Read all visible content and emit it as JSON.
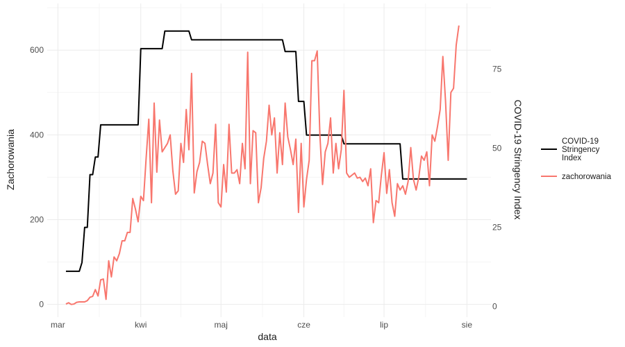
{
  "chart_data": {
    "type": "line",
    "title": "",
    "xlabel": "data",
    "ylabel_left": "Zachorowania",
    "ylabel_right": "COVID-19 Stringency Index",
    "x_ticks": [
      {
        "date": "2020-03-01",
        "label": "mar"
      },
      {
        "date": "2020-04-01",
        "label": "kwi"
      },
      {
        "date": "2020-05-01",
        "label": "maj"
      },
      {
        "date": "2020-06-01",
        "label": "cze"
      },
      {
        "date": "2020-07-01",
        "label": "lip"
      },
      {
        "date": "2020-08-01",
        "label": "sie"
      }
    ],
    "xlim": [
      "2020-02-26",
      "2020-08-10"
    ],
    "ylim_left": [
      -30,
      710
    ],
    "yticks_left": [
      0,
      200,
      400,
      600
    ],
    "ylim_right": [
      -3.38,
      95.75
    ],
    "yticks_right": [
      0,
      25,
      50,
      75
    ],
    "grid": true,
    "legend_position": "right",
    "colors": {
      "stringency": "#000000",
      "cases": "#F8766D"
    },
    "series": [
      {
        "name": "COVID-19 Stringency Index",
        "axis": "right",
        "color": "#000000",
        "points": [
          [
            "2020-03-04",
            11.11
          ],
          [
            "2020-03-09",
            11.11
          ],
          [
            "2020-03-10",
            13.89
          ],
          [
            "2020-03-11",
            25.0
          ],
          [
            "2020-03-12",
            25.0
          ],
          [
            "2020-03-13",
            41.67
          ],
          [
            "2020-03-14",
            41.67
          ],
          [
            "2020-03-15",
            47.22
          ],
          [
            "2020-03-16",
            47.22
          ],
          [
            "2020-03-17",
            57.41
          ],
          [
            "2020-03-31",
            57.41
          ],
          [
            "2020-04-01",
            81.48
          ],
          [
            "2020-04-09",
            81.48
          ],
          [
            "2020-04-10",
            87.04
          ],
          [
            "2020-04-19",
            87.04
          ],
          [
            "2020-04-20",
            84.26
          ],
          [
            "2020-05-24",
            84.26
          ],
          [
            "2020-05-25",
            80.56
          ],
          [
            "2020-05-29",
            80.56
          ],
          [
            "2020-05-30",
            64.81
          ],
          [
            "2020-06-01",
            64.81
          ],
          [
            "2020-06-02",
            54.17
          ],
          [
            "2020-06-15",
            54.17
          ],
          [
            "2020-06-16",
            51.39
          ],
          [
            "2020-07-07",
            51.39
          ],
          [
            "2020-07-08",
            40.28
          ],
          [
            "2020-08-01",
            40.28
          ]
        ]
      },
      {
        "name": "zachorowania",
        "axis": "left",
        "color": "#F8766D",
        "points": [
          [
            "2020-03-04",
            1
          ],
          [
            "2020-03-05",
            4
          ],
          [
            "2020-03-06",
            0
          ],
          [
            "2020-03-07",
            1
          ],
          [
            "2020-03-08",
            5
          ],
          [
            "2020-03-09",
            6
          ],
          [
            "2020-03-10",
            6
          ],
          [
            "2020-03-11",
            6
          ],
          [
            "2020-03-12",
            9
          ],
          [
            "2020-03-13",
            17
          ],
          [
            "2020-03-14",
            19
          ],
          [
            "2020-03-15",
            35
          ],
          [
            "2020-03-16",
            20
          ],
          [
            "2020-03-17",
            58
          ],
          [
            "2020-03-18",
            60
          ],
          [
            "2020-03-19",
            12
          ],
          [
            "2020-03-20",
            103
          ],
          [
            "2020-03-21",
            65
          ],
          [
            "2020-03-22",
            112
          ],
          [
            "2020-03-23",
            103
          ],
          [
            "2020-03-24",
            120
          ],
          [
            "2020-03-25",
            150
          ],
          [
            "2020-03-26",
            150
          ],
          [
            "2020-03-27",
            170
          ],
          [
            "2020-03-28",
            170
          ],
          [
            "2020-03-29",
            250
          ],
          [
            "2020-03-30",
            225
          ],
          [
            "2020-03-31",
            195
          ],
          [
            "2020-04-01",
            255
          ],
          [
            "2020-04-02",
            245
          ],
          [
            "2020-04-03",
            345
          ],
          [
            "2020-04-04",
            437
          ],
          [
            "2020-04-05",
            240
          ],
          [
            "2020-04-06",
            475
          ],
          [
            "2020-04-07",
            312
          ],
          [
            "2020-04-08",
            435
          ],
          [
            "2020-04-09",
            360
          ],
          [
            "2020-04-10",
            370
          ],
          [
            "2020-04-11",
            380
          ],
          [
            "2020-04-12",
            400
          ],
          [
            "2020-04-13",
            315
          ],
          [
            "2020-04-14",
            260
          ],
          [
            "2020-04-15",
            268
          ],
          [
            "2020-04-16",
            380
          ],
          [
            "2020-04-17",
            335
          ],
          [
            "2020-04-18",
            460
          ],
          [
            "2020-04-19",
            365
          ],
          [
            "2020-04-20",
            545
          ],
          [
            "2020-04-21",
            263
          ],
          [
            "2020-04-22",
            313
          ],
          [
            "2020-04-23",
            335
          ],
          [
            "2020-04-24",
            385
          ],
          [
            "2020-04-25",
            380
          ],
          [
            "2020-04-26",
            330
          ],
          [
            "2020-04-27",
            285
          ],
          [
            "2020-04-28",
            310
          ],
          [
            "2020-04-29",
            425
          ],
          [
            "2020-04-30",
            240
          ],
          [
            "2020-05-01",
            230
          ],
          [
            "2020-05-02",
            330
          ],
          [
            "2020-05-03",
            265
          ],
          [
            "2020-05-04",
            425
          ],
          [
            "2020-05-05",
            310
          ],
          [
            "2020-05-06",
            310
          ],
          [
            "2020-05-07",
            318
          ],
          [
            "2020-05-08",
            285
          ],
          [
            "2020-05-09",
            380
          ],
          [
            "2020-05-10",
            320
          ],
          [
            "2020-05-11",
            595
          ],
          [
            "2020-05-12",
            285
          ],
          [
            "2020-05-13",
            410
          ],
          [
            "2020-05-14",
            405
          ],
          [
            "2020-05-15",
            240
          ],
          [
            "2020-05-16",
            275
          ],
          [
            "2020-05-17",
            345
          ],
          [
            "2020-05-18",
            385
          ],
          [
            "2020-05-19",
            470
          ],
          [
            "2020-05-20",
            400
          ],
          [
            "2020-05-21",
            440
          ],
          [
            "2020-05-22",
            310
          ],
          [
            "2020-05-23",
            405
          ],
          [
            "2020-05-24",
            330
          ],
          [
            "2020-05-25",
            475
          ],
          [
            "2020-05-26",
            395
          ],
          [
            "2020-05-27",
            365
          ],
          [
            "2020-05-28",
            330
          ],
          [
            "2020-05-29",
            390
          ],
          [
            "2020-05-30",
            217
          ],
          [
            "2020-05-31",
            380
          ],
          [
            "2020-06-01",
            230
          ],
          [
            "2020-06-02",
            295
          ],
          [
            "2020-06-03",
            340
          ],
          [
            "2020-06-04",
            575
          ],
          [
            "2020-06-05",
            575
          ],
          [
            "2020-06-06",
            598
          ],
          [
            "2020-06-07",
            400
          ],
          [
            "2020-06-08",
            283
          ],
          [
            "2020-06-09",
            360
          ],
          [
            "2020-06-10",
            380
          ],
          [
            "2020-06-11",
            440
          ],
          [
            "2020-06-12",
            310
          ],
          [
            "2020-06-13",
            380
          ],
          [
            "2020-06-14",
            320
          ],
          [
            "2020-06-15",
            365
          ],
          [
            "2020-06-16",
            505
          ],
          [
            "2020-06-17",
            310
          ],
          [
            "2020-06-18",
            300
          ],
          [
            "2020-06-19",
            305
          ],
          [
            "2020-06-20",
            310
          ],
          [
            "2020-06-21",
            298
          ],
          [
            "2020-06-22",
            300
          ],
          [
            "2020-06-23",
            290
          ],
          [
            "2020-06-24",
            298
          ],
          [
            "2020-06-25",
            280
          ],
          [
            "2020-06-26",
            320
          ],
          [
            "2020-06-27",
            193
          ],
          [
            "2020-06-28",
            245
          ],
          [
            "2020-06-29",
            240
          ],
          [
            "2020-06-30",
            305
          ],
          [
            "2020-07-01",
            358
          ],
          [
            "2020-07-02",
            262
          ],
          [
            "2020-07-03",
            318
          ],
          [
            "2020-07-04",
            240
          ],
          [
            "2020-07-05",
            208
          ],
          [
            "2020-07-06",
            285
          ],
          [
            "2020-07-07",
            270
          ],
          [
            "2020-07-08",
            280
          ],
          [
            "2020-07-09",
            260
          ],
          [
            "2020-07-10",
            290
          ],
          [
            "2020-07-11",
            370
          ],
          [
            "2020-07-12",
            295
          ],
          [
            "2020-07-13",
            270
          ],
          [
            "2020-07-14",
            300
          ],
          [
            "2020-07-15",
            350
          ],
          [
            "2020-07-16",
            340
          ],
          [
            "2020-07-17",
            360
          ],
          [
            "2020-07-18",
            280
          ],
          [
            "2020-07-19",
            400
          ],
          [
            "2020-07-20",
            385
          ],
          [
            "2020-07-21",
            420
          ],
          [
            "2020-07-22",
            460
          ],
          [
            "2020-07-23",
            585
          ],
          [
            "2020-07-24",
            480
          ],
          [
            "2020-07-25",
            340
          ],
          [
            "2020-07-26",
            500
          ],
          [
            "2020-07-27",
            510
          ],
          [
            "2020-07-28",
            612
          ],
          [
            "2020-07-29",
            658
          ]
        ]
      }
    ]
  }
}
